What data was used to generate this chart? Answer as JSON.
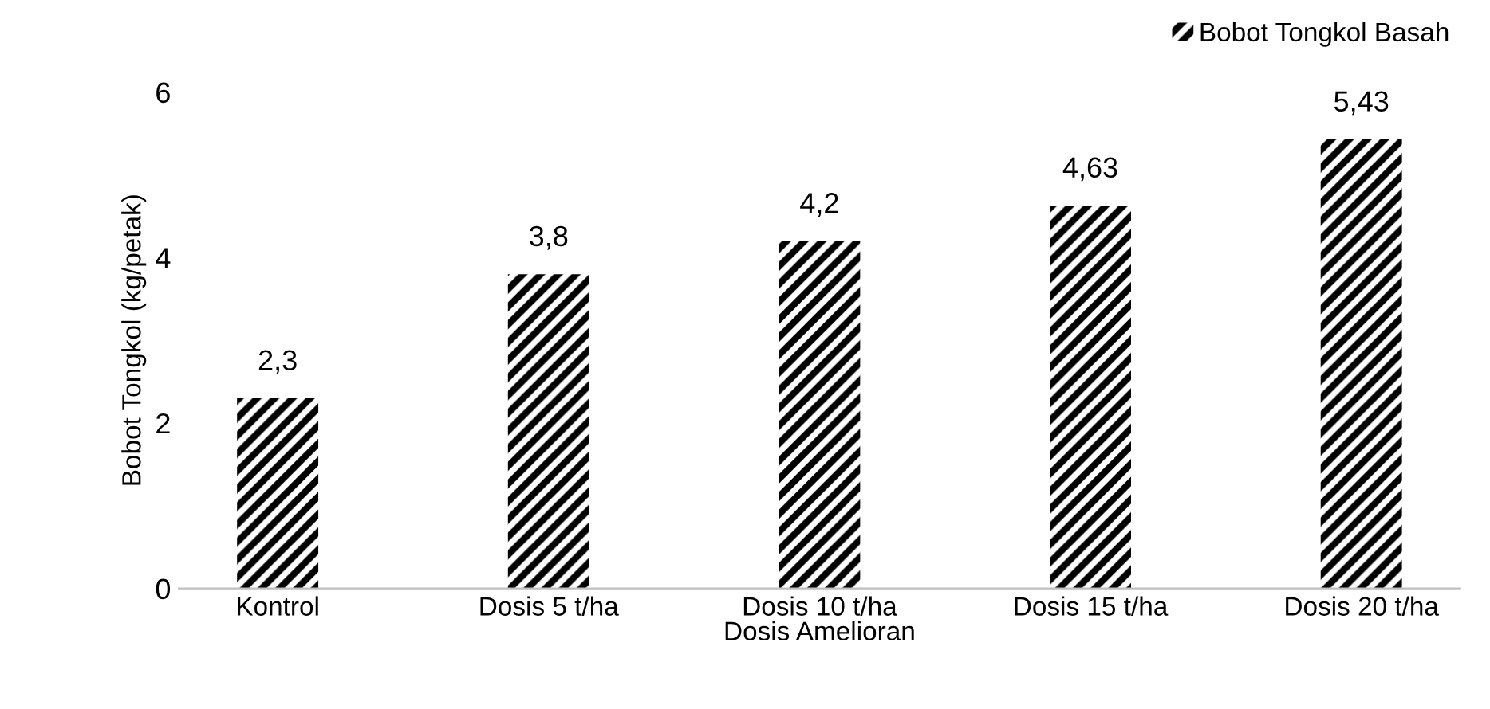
{
  "chart_data": {
    "type": "bar",
    "xlabel": "Dosis Amelioran",
    "ylabel": "Bobot Tongkol (kg/petak)",
    "categories": [
      "Kontrol",
      "Dosis 5 t/ha",
      "Dosis 10 t/ha",
      "Dosis 15 t/ha",
      "Dosis 20 t/ha"
    ],
    "series": [
      {
        "name": "Bobot Tongkol Basah",
        "color": "#000000",
        "values": [
          2.3,
          3.8,
          4.2,
          4.63,
          5.43
        ],
        "value_labels": [
          "2,3",
          "3,8",
          "4,2",
          "4,63",
          "5,43"
        ]
      }
    ],
    "ylim": [
      0,
      6
    ],
    "yticks": [
      0,
      2,
      4,
      6
    ],
    "grid": false,
    "legend": "top right"
  }
}
